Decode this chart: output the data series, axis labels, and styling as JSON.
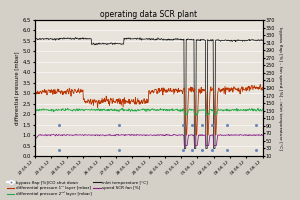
{
  "title": "operating data SCR plant",
  "ylabel_left": "differential pressure [mbar]",
  "ylabel_right": "bypass flap [%] – fan speed [%] – inlet temperature [°C]",
  "ylim_left": [
    0.0,
    6.5
  ],
  "ylim_right": [
    10,
    370
  ],
  "yticks_left": [
    0.0,
    0.5,
    1.0,
    1.5,
    2.0,
    2.5,
    3.0,
    3.5,
    4.0,
    4.5,
    5.0,
    5.5,
    6.0,
    6.5
  ],
  "yticks_right": [
    10,
    30,
    50,
    70,
    90,
    110,
    130,
    150,
    170,
    190,
    210,
    230,
    250,
    270,
    290,
    310,
    330,
    350,
    370
  ],
  "background_color": "#d4d0c8",
  "plot_bg_color": "#e8e4dc",
  "grid_color": "#ffffff",
  "colors": {
    "inlet_temp": "#1a1a1a",
    "diff_press_1": "#bb3300",
    "diff_press_2": "#22aa44",
    "speed_fan": "#882288",
    "bypass_flap": "#6688bb"
  },
  "x_labels": [
    "22.05.12",
    "23.05.12",
    "24.05.12",
    "25.05.12",
    "26.05.12",
    "27.05.12",
    "28.05.12",
    "29.05.12",
    "30.05.12",
    "31.05.12",
    "01.06.12",
    "02.06.12",
    "03.06.12",
    "04.06.12",
    "05.06.12"
  ],
  "n_points": 500
}
